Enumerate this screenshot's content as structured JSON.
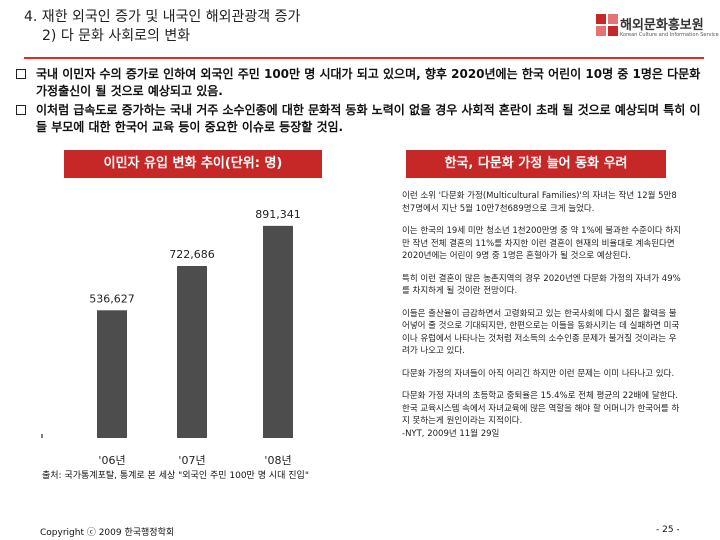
{
  "header": {
    "title_line1": "4. 재한 외국인 증가 및 내국인 해외관광객 증가",
    "title_line2": "2) 다 문화 사회로의 변화"
  },
  "logo": {
    "name_ko": "해외문화홍보원",
    "name_en": "Korean Culture and Information Service"
  },
  "bullets": [
    "국내 이민자 수의 증가로 인하여 외국인 주민 100만 명 시대가 되고 있으며, 향후 2020년에는 한국 어린이 10명 중 1명은 다문화 가정출신이 될 것으로 예상되고 있음.",
    "이처럼 급속도로 증가하는 국내 거주 소수인종에 대한 문화적 동화 노력이 없을 경우 사회적 혼란이 초래 될 것으로 예상되며 특히 이들 부모에 대한 한국어 교육 등이 중요한 이슈로 등장할 것임."
  ],
  "left_panel": {
    "header": "이민자 유입 변화 추이(단위: 명)",
    "source": "출처: 국가통계포탈, 통계로 본 세상 \"외국인 주민 100만 명 시대 진입\""
  },
  "chart_data": {
    "type": "bar",
    "categories": [
      "'06년",
      "'07년",
      "'08년"
    ],
    "values": [
      536627,
      722686,
      891341
    ],
    "value_labels": [
      "536,627",
      "722,686",
      "891,341"
    ],
    "ylim": [
      0,
      1000000
    ],
    "title": "이민자 유입 변화 추이(단위: 명)",
    "xlabel": "",
    "ylabel": "",
    "grid": false,
    "bar_color": "#4d4d4d"
  },
  "right_panel": {
    "header": "한국, 다문화 가정 늘어 동화 우려",
    "paragraphs": [
      "이런 소위 '다문화 가정(Multicultural Families)'의 자녀는 작년 12월 5만8천7명에서 지난 5월 10만7천689명으로 크게 늘었다.",
      "이는 한국의 19세 미만 청소년 1천200만명 중 약 1%에 불과한 수준이다 하지만 작년 전체 결혼의 11%를 차지한 이런 결혼이 현재의 비율대로 계속된다면 2020년에는 어린이 9명 중 1명은 혼혈아가 될 것으로 예상된다.",
      "특히 이런 결혼이 많은 농촌지역의 경우 2020년엔 다문화 가정의 자녀가 49%를 차지하게 될 것이란 전망이다.",
      "이들은 출산율이 급감하면서 고령화되고 있는 한국사회에 다시 젊은 활력을 불어넣어 줄 것으로 기대되지만, 한편으로는 이들을 동화시키는 데 실패하면 미국이나 유럽에서 나타나는 것처럼 저소득의 소수인종 문제가 불거질 것이라는 우려가 나오고 있다.",
      "다문화 가정의 자녀들이 아직 어리긴 하지만 이런 문제는 이미 나타나고 있다.",
      "다문화 가정 자녀의 초등학교 중퇴율은 15.4%로 전체 평균의 22배에 달한다. 한국 교육시스템 속에서 자녀교육에 많은 역할을 해야 할 어머니가 한국어를 하지 못하는게 원인이라는 지적이다.",
      "-NYT, 2009년 11월 29일"
    ]
  },
  "footer": {
    "copyright": "Copyright ⓒ 2009 한국행정학회",
    "page_number": "- 25 -"
  },
  "colors": {
    "accent": "#c62828",
    "bar": "#4d4d4d"
  }
}
